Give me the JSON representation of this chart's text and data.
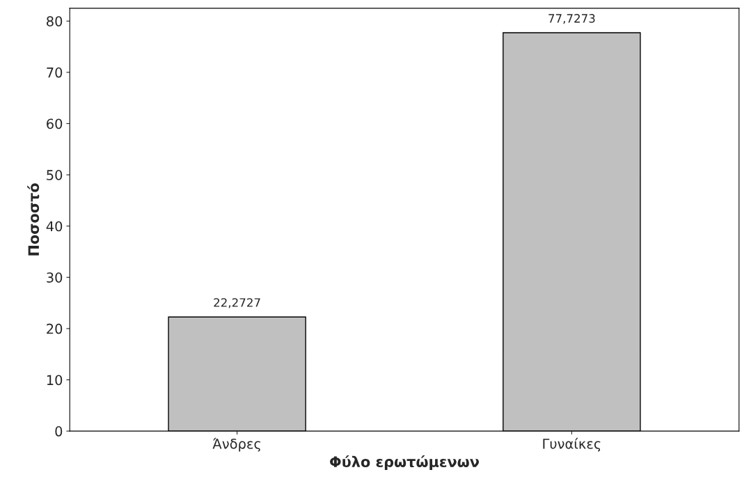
{
  "chart_data": {
    "type": "bar",
    "xlabel": "Φύλο ερωτώμενων",
    "ylabel": "Ποσοστό",
    "categories": [
      "Άνδρες",
      "Γυναίκες"
    ],
    "values": [
      22.2727,
      77.7273
    ],
    "value_labels": [
      "22,2727",
      "77,7273"
    ],
    "color": "#c0c0c0",
    "ylim": [
      0,
      82.5
    ],
    "yticks": [
      0,
      10,
      20,
      30,
      40,
      50,
      60,
      70,
      80
    ],
    "grid": false
  }
}
